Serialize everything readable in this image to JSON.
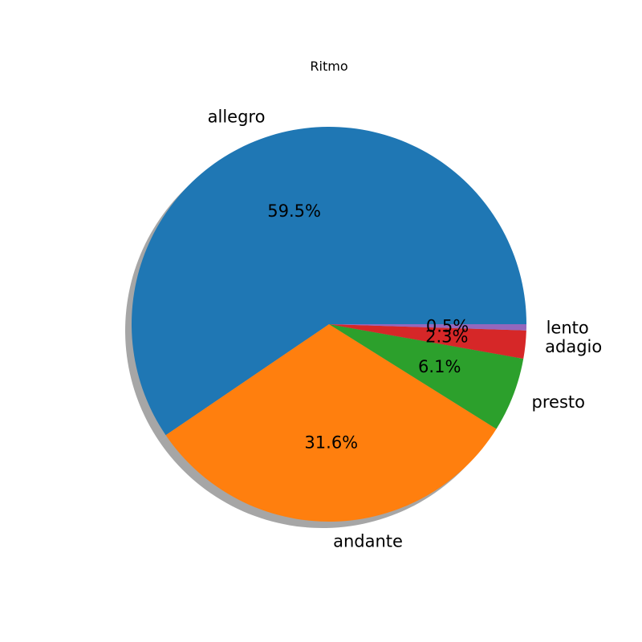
{
  "chart_data": {
    "type": "pie",
    "title": "Ritmo",
    "categories": [
      "allegro",
      "andante",
      "presto",
      "adagio",
      "lento"
    ],
    "values": [
      59.5,
      31.6,
      6.1,
      2.3,
      0.5
    ],
    "labels_pct": [
      "59.5%",
      "31.6%",
      "6.1%",
      "2.3%",
      "0.5%"
    ],
    "colors": [
      "#1f77b4",
      "#ff7f0e",
      "#2ca02c",
      "#d62728",
      "#9467bd"
    ],
    "shadow": true,
    "start_angle_deg": 0,
    "legend": "none"
  }
}
